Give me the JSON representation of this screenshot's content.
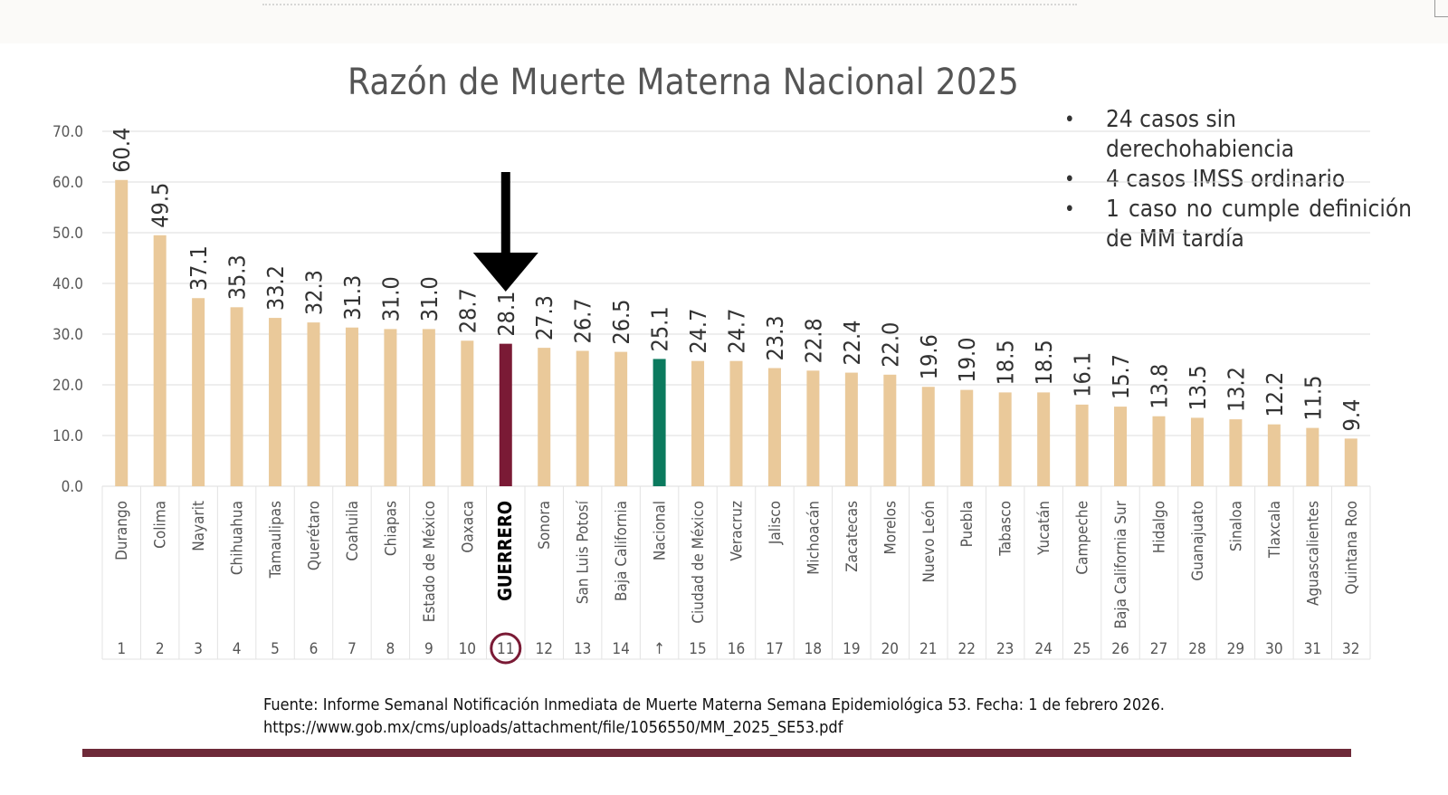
{
  "chart_data": {
    "type": "bar",
    "title": "Razón de Muerte Materna Nacional 2025",
    "ylim": [
      0,
      70
    ],
    "y_ticks": [
      "0.0",
      "10.0",
      "20.0",
      "30.0",
      "40.0",
      "50.0",
      "60.0",
      "70.0"
    ],
    "grid": true,
    "categories": [
      "Durango",
      "Colima",
      "Nayarit",
      "Chihuahua",
      "Tamaulipas",
      "Querétaro",
      "Coahuila",
      "Chiapas",
      "Estado de México",
      "Oaxaca",
      "GUERRERO",
      "Sonora",
      "San Luis Potosí",
      "Baja California",
      "Nacional",
      "Ciudad de México",
      "Veracruz",
      "Jalisco",
      "Michoacán",
      "Zacatecas",
      "Morelos",
      "Nuevo León",
      "Puebla",
      "Tabasco",
      "Yucatán",
      "Campeche",
      "Baja California Sur",
      "Hidalgo",
      "Guanajuato",
      "Sinaloa",
      "Tlaxcala",
      "Aguascalientes",
      "Quintana Roo"
    ],
    "values": [
      60.4,
      49.5,
      37.1,
      35.3,
      33.2,
      32.3,
      31.3,
      31.0,
      31.0,
      28.7,
      28.1,
      27.3,
      26.7,
      26.5,
      25.1,
      24.7,
      24.7,
      23.3,
      22.8,
      22.4,
      22.0,
      19.6,
      19.0,
      18.5,
      18.5,
      16.1,
      15.7,
      13.8,
      13.5,
      13.2,
      12.2,
      11.5,
      9.4
    ],
    "value_labels": [
      "60.4",
      "49.5",
      "37.1",
      "35.3",
      "33.2",
      "32.3",
      "31.3",
      "31.0",
      "31.0",
      "28.7",
      "28.1",
      "27.3",
      "26.7",
      "26.5",
      "25.1",
      "24.7",
      "24.7",
      "23.3",
      "22.8",
      "22.4",
      "22.0",
      "19.6",
      "19.0",
      "18.5",
      "18.5",
      "16.1",
      "15.7",
      "13.8",
      "13.5",
      "13.2",
      "12.2",
      "11.5",
      "9.4"
    ],
    "ranks": [
      "1",
      "2",
      "3",
      "4",
      "5",
      "6",
      "7",
      "8",
      "9",
      "10",
      "11",
      "12",
      "13",
      "14",
      "↑",
      "15",
      "16",
      "17",
      "18",
      "19",
      "20",
      "21",
      "22",
      "23",
      "24",
      "25",
      "26",
      "27",
      "28",
      "29",
      "30",
      "31",
      "32"
    ],
    "highlight_category": "GUERRERO",
    "reference_category": "Nacional",
    "colors": {
      "default": "#eac99a",
      "highlight": "#7a1a35",
      "reference": "#0b7a5e",
      "grid": "#dddddd",
      "axis_text": "#595959"
    }
  },
  "notes": [
    "24 casos sin derechohabiencia",
    "4 casos IMSS ordinario",
    "1 caso no cumple definición de MM tardía"
  ],
  "source": {
    "line1": "Fuente: Informe Semanal Notificación Inmediata de Muerte Materna Semana Epidemiológica 53. Fecha: 1 de febrero 2026.",
    "line2": "https://www.gob.mx/cms/uploads/attachment/file/1056550/MM_2025_SE53.pdf"
  },
  "colors": {
    "footer_rule": "#6e2a39",
    "arrow": "#000000"
  }
}
